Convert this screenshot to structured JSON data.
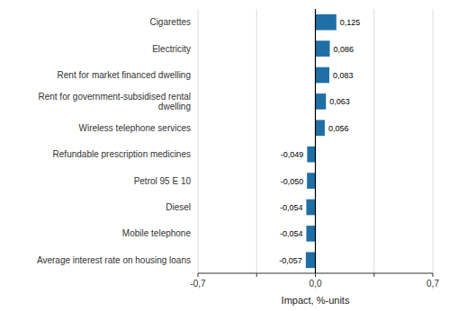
{
  "chart_data": {
    "type": "bar",
    "orientation": "horizontal",
    "categories": [
      "Average interest rate on housing loans",
      "Mobile telephone",
      "Diesel",
      "Petrol 95 E 10",
      "Refundable prescription medicines",
      "Wireless telephone services",
      "Rent for government-subsidised rental\ndwelling",
      "Rent for market financed dwelling",
      "Electricity",
      "Cigarettes"
    ],
    "values": [
      -0.057,
      -0.054,
      -0.054,
      -0.05,
      -0.049,
      0.056,
      0.063,
      0.083,
      0.086,
      0.125
    ],
    "value_labels": [
      "-0,057",
      "-0,054",
      "-0,054",
      "-0,050",
      "-0,049",
      "0,056",
      "0,063",
      "0,083",
      "0,086",
      "0,125"
    ],
    "data_labels": true,
    "color": "#1f6fa5",
    "xlabel": "Impact, %-units",
    "xlim": [
      -0.7,
      0.7
    ],
    "xticks": [
      {
        "value": -0.7,
        "label": "-0,7"
      },
      {
        "value": -0.35,
        "label": null
      },
      {
        "value": 0.0,
        "label": "0,0"
      },
      {
        "value": 0.35,
        "label": null
      },
      {
        "value": 0.7,
        "label": "0,7"
      }
    ],
    "grid": true
  }
}
